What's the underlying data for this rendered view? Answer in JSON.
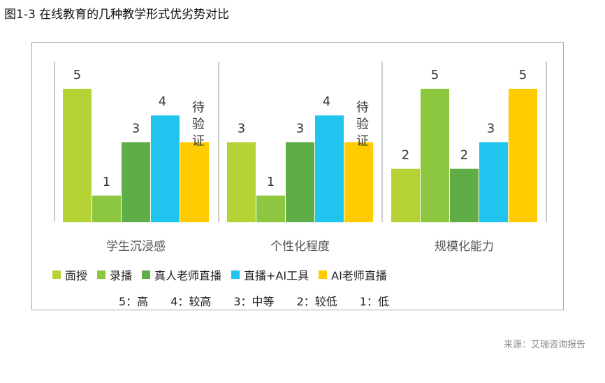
{
  "figure_title": "图1-3  在线教育的几种教学形式优劣势对比",
  "source": "来源：艾瑞咨询报告",
  "colors": {
    "面授": "#b5d334",
    "录播": "#8dc63f",
    "真人老师直播": "#5fad46",
    "直播+AI工具": "#21c4ee",
    "AI老师直播": "#ffcc00"
  },
  "legend": [
    {
      "label": "面授",
      "color": "#b5d334"
    },
    {
      "label": "录播",
      "color": "#8dc63f"
    },
    {
      "label": "真人老师直播",
      "color": "#5fad46"
    },
    {
      "label": "直播+AI工具",
      "color": "#21c4ee"
    },
    {
      "label": "AI老师直播",
      "color": "#ffcc00"
    }
  ],
  "scale": [
    "5：高",
    "4：较高",
    "3：中等",
    "2：较低",
    "1：低"
  ],
  "chart_data": {
    "type": "bar",
    "categories": [
      "学生沉浸感",
      "个性化程度",
      "规模化能力"
    ],
    "series": [
      {
        "name": "面授",
        "values": [
          5,
          3,
          2
        ]
      },
      {
        "name": "录播",
        "values": [
          1,
          1,
          5
        ]
      },
      {
        "name": "真人老师直播",
        "values": [
          3,
          3,
          2
        ]
      },
      {
        "name": "直播+AI工具",
        "values": [
          4,
          4,
          3
        ]
      },
      {
        "name": "AI老师直播",
        "values": [
          null,
          null,
          5
        ],
        "display_values": [
          "待验证",
          "待验证",
          "5"
        ]
      }
    ],
    "ylim": [
      0,
      5.5
    ],
    "grid": false,
    "legend_position": "bottom"
  }
}
